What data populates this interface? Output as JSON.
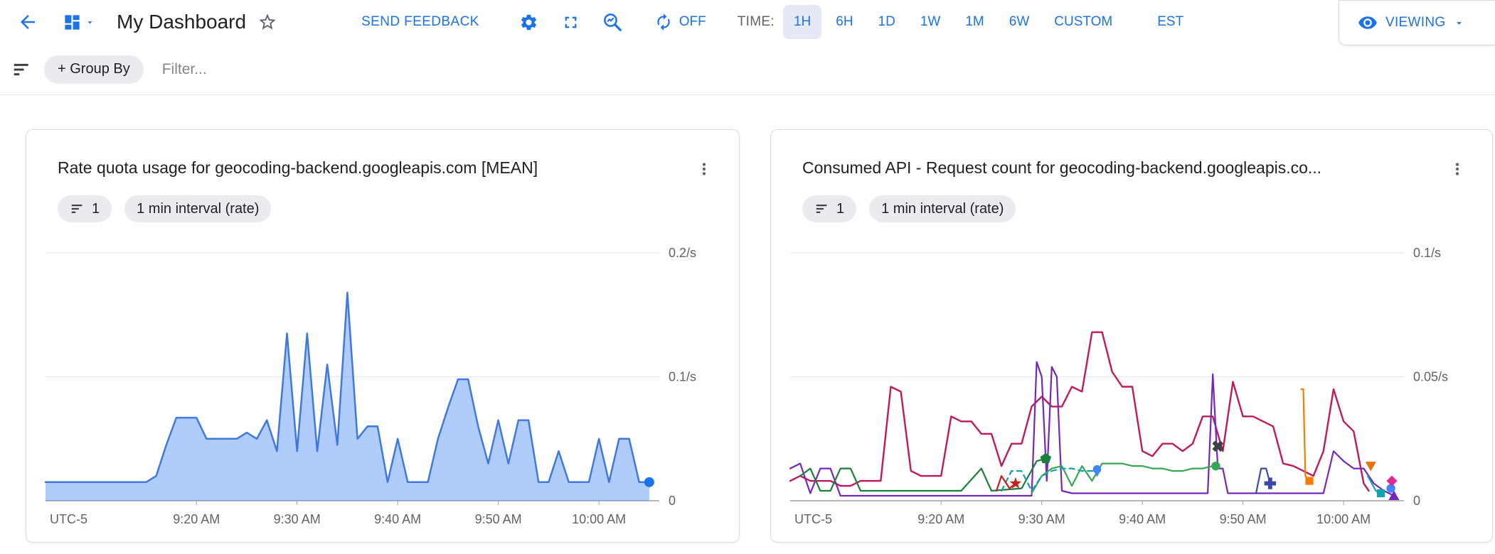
{
  "toolbar": {
    "title": "My Dashboard",
    "send_feedback": "SEND FEEDBACK",
    "refresh_state": "OFF",
    "time_label": "TIME:",
    "time_ranges": [
      "1H",
      "6H",
      "1D",
      "1W",
      "1M",
      "6W",
      "CUSTOM"
    ],
    "selected_range": "1H",
    "timezone": "EST",
    "viewing": "VIEWING"
  },
  "filter_bar": {
    "group_by": "+ Group By",
    "filter_placeholder": "Filter..."
  },
  "icons": {
    "back": "back-arrow",
    "dashboard": "dashboard-grid",
    "star": "star-outline",
    "settings": "gear",
    "fullscreen": "fullscreen-corners",
    "zoom": "magnifier-with-line-chart",
    "refresh": "autorenew",
    "eye": "visibility",
    "filter": "filter-list",
    "more": "vertical-three-dots"
  },
  "cards": [
    {
      "title": "Rate quota usage for geocoding-backend.googleapis.com [MEAN]",
      "filter_count": "1",
      "interval_chip": "1 min interval (rate)"
    },
    {
      "title": "Consumed API - Request count for geocoding-backend.googleapis.co...",
      "filter_count": "1",
      "interval_chip": "1 min interval (rate)"
    }
  ],
  "chart_data": [
    {
      "type": "area",
      "title": "Rate quota usage for geocoding-backend.googleapis.com [MEAN]",
      "y_unit": "/s",
      "ylim": [
        0,
        0.2
      ],
      "y_top_value": 0.2,
      "grid": true,
      "y_gridlines": [
        {
          "value": 0.2,
          "label": "0.2/s"
        },
        {
          "value": 0.1,
          "label": "0.1/s"
        },
        {
          "value": 0,
          "label": "0"
        }
      ],
      "x_domain_minutes": [
        0,
        61
      ],
      "x_start_time": "9:05 AM",
      "x_ticks": [
        {
          "m": 2.3,
          "label": "UTC-5",
          "tick": false
        },
        {
          "m": 15,
          "label": "9:20 AM"
        },
        {
          "m": 25,
          "label": "9:30 AM"
        },
        {
          "m": 35,
          "label": "9:40 AM"
        },
        {
          "m": 45,
          "label": "9:50 AM"
        },
        {
          "m": 55,
          "label": "10:00 AM"
        }
      ],
      "series": [
        {
          "name": "rate_quota_mean",
          "color": "#4078e0",
          "area": true,
          "fill": "rgba(66,133,244,0.42)",
          "width": 2.5,
          "end_dot": true,
          "points": [
            [
              0,
              0.015
            ],
            [
              5,
              0.015
            ],
            [
              9,
              0.015
            ],
            [
              10,
              0.015
            ],
            [
              11,
              0.02
            ],
            [
              12,
              0.045
            ],
            [
              13,
              0.067
            ],
            [
              14,
              0.067
            ],
            [
              15,
              0.067
            ],
            [
              16,
              0.05
            ],
            [
              17,
              0.05
            ],
            [
              18,
              0.05
            ],
            [
              19,
              0.05
            ],
            [
              20,
              0.055
            ],
            [
              21,
              0.05
            ],
            [
              22,
              0.065
            ],
            [
              23,
              0.04
            ],
            [
              24,
              0.135
            ],
            [
              25,
              0.04
            ],
            [
              26,
              0.135
            ],
            [
              27,
              0.04
            ],
            [
              28,
              0.11
            ],
            [
              29,
              0.045
            ],
            [
              30,
              0.168
            ],
            [
              31,
              0.05
            ],
            [
              32,
              0.06
            ],
            [
              33,
              0.06
            ],
            [
              34,
              0.015
            ],
            [
              35,
              0.05
            ],
            [
              36,
              0.015
            ],
            [
              37,
              0.015
            ],
            [
              38,
              0.015
            ],
            [
              39,
              0.05
            ],
            [
              40,
              0.075
            ],
            [
              41,
              0.098
            ],
            [
              42,
              0.098
            ],
            [
              43,
              0.06
            ],
            [
              44,
              0.03
            ],
            [
              45,
              0.065
            ],
            [
              46,
              0.03
            ],
            [
              47,
              0.065
            ],
            [
              48,
              0.065
            ],
            [
              49,
              0.015
            ],
            [
              50,
              0.015
            ],
            [
              51,
              0.04
            ],
            [
              52,
              0.015
            ],
            [
              53,
              0.015
            ],
            [
              54,
              0.015
            ],
            [
              55,
              0.05
            ],
            [
              56,
              0.015
            ],
            [
              57,
              0.05
            ],
            [
              58,
              0.05
            ],
            [
              59,
              0.015
            ],
            [
              60,
              0.015
            ]
          ]
        }
      ]
    },
    {
      "type": "line",
      "title": "Consumed API - Request count for geocoding-backend.googleapis.co...",
      "y_unit": "/s",
      "ylim": [
        0,
        0.1
      ],
      "y_top_value": 0.1,
      "grid": true,
      "y_gridlines": [
        {
          "value": 0.1,
          "label": "0.1/s"
        },
        {
          "value": 0.05,
          "label": "0.05/s"
        },
        {
          "value": 0,
          "label": "0"
        }
      ],
      "x_domain_minutes": [
        0,
        61
      ],
      "x_start_time": "9:05 AM",
      "x_ticks": [
        {
          "m": 2.3,
          "label": "UTC-5",
          "tick": false
        },
        {
          "m": 15,
          "label": "9:20 AM"
        },
        {
          "m": 25,
          "label": "9:30 AM"
        },
        {
          "m": 35,
          "label": "9:40 AM"
        },
        {
          "m": 45,
          "label": "9:50 AM"
        },
        {
          "m": 55,
          "label": "10:00 AM"
        }
      ],
      "series": [
        {
          "name": "series-magenta",
          "color": "#c2185b",
          "width": 2.4,
          "points": [
            [
              0,
              0.008
            ],
            [
              1,
              0.01
            ],
            [
              2,
              0.008
            ],
            [
              3,
              0.008
            ],
            [
              4,
              0.008
            ],
            [
              5,
              0.006
            ],
            [
              6,
              0.006
            ],
            [
              7,
              0.008
            ],
            [
              9,
              0.008
            ],
            [
              10,
              0.046
            ],
            [
              11,
              0.044
            ],
            [
              12,
              0.012
            ],
            [
              13,
              0.01
            ],
            [
              14,
              0.01
            ],
            [
              15,
              0.01
            ],
            [
              16,
              0.034
            ],
            [
              17,
              0.032
            ],
            [
              18,
              0.032
            ],
            [
              19,
              0.027
            ],
            [
              20,
              0.027
            ],
            [
              21,
              0.014
            ],
            [
              22,
              0.023
            ],
            [
              23,
              0.023
            ],
            [
              24,
              0.038
            ],
            [
              25,
              0.042
            ],
            [
              26,
              0.038
            ],
            [
              27,
              0.038
            ],
            [
              28,
              0.046
            ],
            [
              29,
              0.044
            ],
            [
              30,
              0.068
            ],
            [
              31,
              0.068
            ],
            [
              32,
              0.052
            ],
            [
              33,
              0.046
            ],
            [
              34,
              0.046
            ],
            [
              35,
              0.02
            ],
            [
              36,
              0.018
            ],
            [
              37,
              0.023
            ],
            [
              38,
              0.023
            ],
            [
              39,
              0.02
            ],
            [
              40,
              0.023
            ],
            [
              41,
              0.034
            ],
            [
              42,
              0.034
            ],
            [
              43,
              0.02
            ],
            [
              44,
              0.048
            ],
            [
              45,
              0.034
            ],
            [
              46,
              0.034
            ],
            [
              47,
              0.032
            ],
            [
              48,
              0.03
            ],
            [
              49,
              0.015
            ],
            [
              50,
              0.014
            ],
            [
              51,
              0.012
            ],
            [
              52,
              0.01
            ],
            [
              53,
              0.02
            ],
            [
              54,
              0.045
            ],
            [
              55,
              0.032
            ],
            [
              56,
              0.028
            ],
            [
              57,
              0.007
            ],
            [
              57.5,
              0.004
            ]
          ]
        },
        {
          "name": "series-purple",
          "color": "#7627bb",
          "marker": {
            "shape": "triangle-up"
          },
          "points": [
            [
              0,
              0.013
            ],
            [
              1,
              0.015
            ],
            [
              2,
              0.003
            ],
            [
              3,
              0.013
            ],
            [
              4,
              0.013
            ],
            [
              5,
              0.002
            ],
            [
              8,
              0.002
            ],
            [
              23,
              0.002
            ],
            [
              24,
              0.002
            ],
            [
              24.5,
              0.056
            ],
            [
              25,
              0.05
            ],
            [
              25.5,
              0.008
            ],
            [
              26,
              0.054
            ],
            [
              26.5,
              0.05
            ],
            [
              27,
              0.004
            ],
            [
              28,
              0.003
            ],
            [
              41.5,
              0.003
            ],
            [
              42,
              0.051
            ],
            [
              42.5,
              0.013
            ],
            [
              43,
              0.013
            ],
            [
              43.5,
              0.003
            ],
            [
              53,
              0.003
            ],
            [
              54,
              0.02
            ],
            [
              55,
              0.016
            ],
            [
              56,
              0.013
            ],
            [
              57,
              0.013
            ],
            [
              58,
              0.007
            ],
            [
              59,
              0.004
            ],
            [
              60,
              0.002
            ]
          ]
        },
        {
          "name": "series-dark-green",
          "color": "#188038",
          "marker": {
            "shape": "pentagon"
          },
          "points": [
            [
              1,
              0.01
            ],
            [
              2,
              0.013
            ],
            [
              3,
              0.004
            ],
            [
              4,
              0.004
            ],
            [
              5,
              0.013
            ],
            [
              6,
              0.013
            ],
            [
              7,
              0.004
            ],
            [
              17,
              0.004
            ],
            [
              19,
              0.013
            ],
            [
              20,
              0.004
            ],
            [
              23,
              0.005
            ],
            [
              24.5,
              0.016
            ],
            [
              25.4,
              0.017
            ]
          ]
        },
        {
          "name": "series-green",
          "color": "#34a853",
          "marker": {
            "shape": "circle"
          },
          "points": [
            [
              24,
              0.003
            ],
            [
              25,
              0.01
            ],
            [
              26,
              0.013
            ],
            [
              27,
              0.014
            ],
            [
              28,
              0.006
            ],
            [
              29,
              0.014
            ],
            [
              30,
              0.008
            ],
            [
              31,
              0.015
            ],
            [
              32,
              0.015
            ],
            [
              33,
              0.015
            ],
            [
              34,
              0.014
            ],
            [
              35,
              0.014
            ],
            [
              36,
              0.013
            ],
            [
              37,
              0.013
            ],
            [
              38,
              0.012
            ],
            [
              39,
              0.012
            ],
            [
              40,
              0.013
            ],
            [
              41,
              0.013
            ],
            [
              42,
              0.014
            ],
            [
              42.3,
              0.014
            ]
          ]
        },
        {
          "name": "series-teal-dashed",
          "color": "#129eaf",
          "dash": "7,6",
          "marker": {
            "shape": "drop",
            "color": "#4285f4"
          },
          "points": [
            [
              21,
              0.004
            ],
            [
              22,
              0.012
            ],
            [
              23,
              0.012
            ],
            [
              24,
              0.004
            ],
            [
              25,
              0.01
            ],
            [
              26,
              0.012
            ],
            [
              27,
              0.013
            ],
            [
              28,
              0.013
            ],
            [
              29,
              0.012
            ],
            [
              30,
              0.012
            ],
            [
              30.5,
              0.012
            ]
          ]
        },
        {
          "name": "series-red",
          "color": "#c5221f",
          "marker": {
            "shape": "star"
          },
          "points": [
            [
              20.5,
              0.004
            ],
            [
              21,
              0.01
            ],
            [
              21.8,
              0.005
            ],
            [
              22.4,
              0.007
            ]
          ]
        },
        {
          "name": "series-x-mark",
          "color": "#3c4043",
          "marker": {
            "shape": "x"
          },
          "points": [
            [
              42.5,
              0.022
            ]
          ]
        },
        {
          "name": "series-navy",
          "color": "#3949ab",
          "marker": {
            "shape": "plus"
          },
          "points": [
            [
              46.3,
              0.003
            ],
            [
              46.8,
              0.013
            ],
            [
              47.3,
              0.013
            ],
            [
              47.7,
              0.007
            ]
          ]
        },
        {
          "name": "series-orange",
          "color": "#f57c00",
          "marker": {
            "shape": "square"
          },
          "points": [
            [
              50.8,
              0.045
            ],
            [
              51,
              0.045
            ],
            [
              51.2,
              0.01
            ],
            [
              51.6,
              0.008
            ]
          ]
        },
        {
          "name": "series-orange-red",
          "color": "#e8710a",
          "marker": {
            "shape": "triangle-down"
          },
          "points": [
            [
              57.7,
              0.014
            ]
          ]
        },
        {
          "name": "series-teal-end",
          "color": "#12a4af",
          "marker": {
            "shape": "square"
          },
          "points": [
            [
              57.4,
              0.01
            ],
            [
              58.2,
              0.004
            ],
            [
              58.7,
              0.003
            ]
          ]
        },
        {
          "name": "series-blue-dot",
          "color": "#4285f4",
          "marker": {
            "shape": "circle"
          },
          "points": [
            [
              59.7,
              0.005
            ]
          ]
        },
        {
          "name": "series-pink-diamond",
          "color": "#e52592",
          "marker": {
            "shape": "diamond"
          },
          "points": [
            [
              59.8,
              0.008
            ]
          ]
        }
      ]
    }
  ]
}
